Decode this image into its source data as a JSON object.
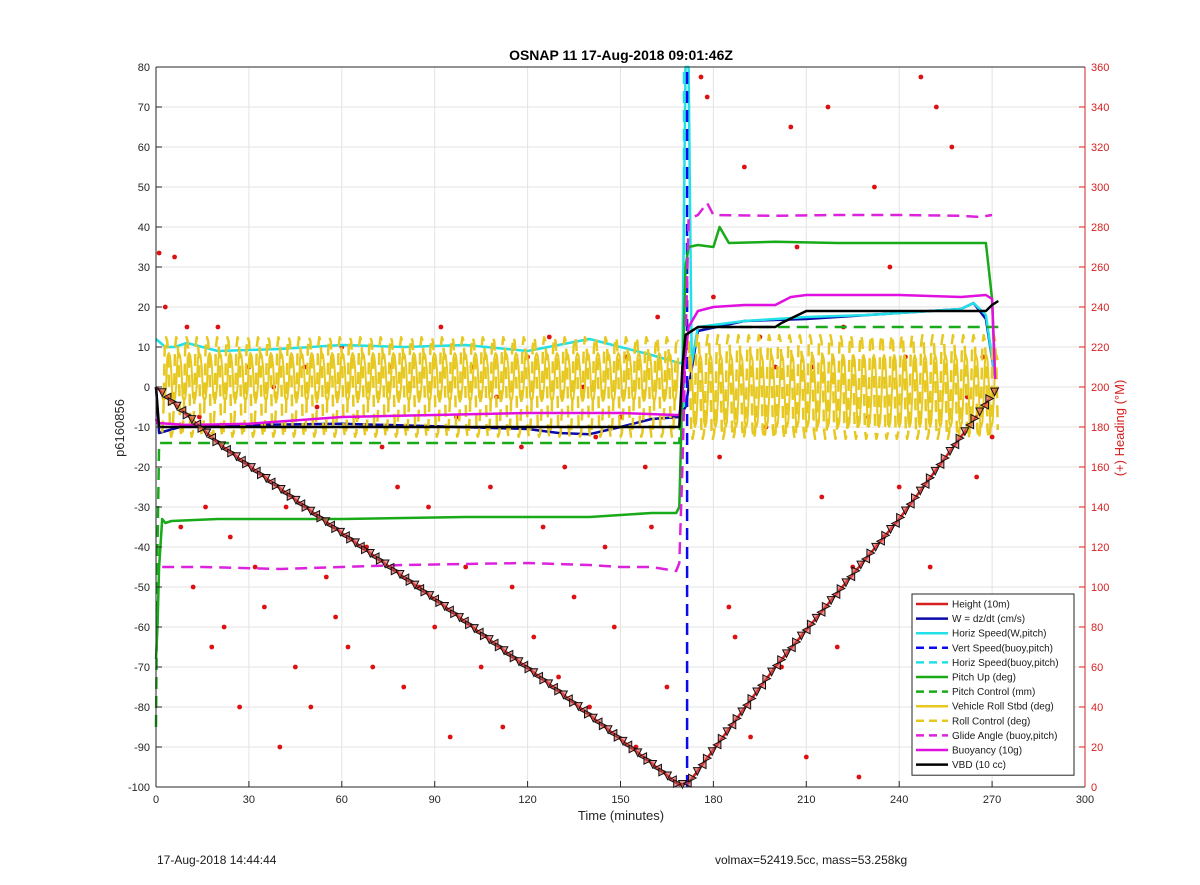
{
  "chart_data": {
    "type": "line",
    "title": "OSNAP 11 17-Aug-2018 09:01:46Z",
    "xlabel": "Time (minutes)",
    "ylabel": "p6160856",
    "y2label": "(+) Heading (°M)",
    "xlim": [
      0,
      300
    ],
    "ylim": [
      -100,
      80
    ],
    "y2lim": [
      0,
      360
    ],
    "xticks": [
      "0",
      "30",
      "60",
      "90",
      "120",
      "150",
      "180",
      "210",
      "240",
      "270",
      "300"
    ],
    "yticks": [
      "80",
      "70",
      "60",
      "50",
      "40",
      "30",
      "20",
      "10",
      "0",
      "-10",
      "-20",
      "-30",
      "-40",
      "-50",
      "-60",
      "-70",
      "-80",
      "-90",
      "-100"
    ],
    "y2ticks": [
      "360",
      "340",
      "320",
      "300",
      "280",
      "260",
      "240",
      "220",
      "200",
      "180",
      "160",
      "140",
      "120",
      "100",
      "80",
      "60",
      "40",
      "20",
      "0"
    ],
    "grid": true,
    "legend_position": "bottom-right",
    "series": [
      {
        "name": "Height (10m)",
        "style": "solid",
        "color": "#d62020",
        "x": [
          0,
          20,
          50,
          90,
          130,
          169,
          172,
          200,
          240,
          272
        ],
        "y": [
          0,
          -14,
          -31,
          -53,
          -76,
          -99.5,
          -99,
          -70,
          -33,
          0
        ]
      },
      {
        "name": "W = dz/dt (cm/s)",
        "style": "solid",
        "color": "#0a0aaa",
        "x": [
          0,
          1,
          10,
          30,
          60,
          90,
          120,
          130,
          140,
          150,
          160,
          169,
          171,
          175,
          190,
          210,
          230,
          250,
          260,
          264,
          268,
          271
        ],
        "y": [
          0,
          -11.5,
          -9.5,
          -9.5,
          -9.2,
          -9.8,
          -10.5,
          -11.5,
          -11.8,
          -10,
          -8,
          -7.5,
          -5,
          14,
          16.5,
          17,
          18,
          19,
          19.5,
          21,
          17,
          2
        ]
      },
      {
        "name": "Horiz Speed(W,pitch)",
        "style": "solid",
        "color": "#22e0e8",
        "x": [
          0,
          3,
          6,
          10,
          20,
          40,
          60,
          80,
          100,
          120,
          140,
          150,
          160,
          169,
          170,
          171,
          172,
          173,
          175,
          190,
          210,
          230,
          250,
          260,
          264,
          268,
          271
        ],
        "y": [
          12,
          10,
          10,
          11,
          9,
          9.5,
          10.5,
          10,
          10.5,
          9,
          12,
          10,
          8,
          6,
          6,
          80,
          80,
          6,
          15,
          16.5,
          17.5,
          18,
          19,
          19.5,
          21,
          18,
          2
        ]
      },
      {
        "name": "Vert Speed(buoy,pitch)",
        "style": "dash",
        "color": "#0a0aee",
        "x": [
          171.5,
          171.5
        ],
        "y": [
          -100,
          80
        ]
      },
      {
        "name": "Horiz Speed(buoy,pitch)",
        "style": "dash",
        "color": "#22e0e8",
        "x": [
          170.5,
          170.5
        ],
        "y": [
          -5,
          80
        ]
      },
      {
        "name": "Pitch Up (deg)",
        "style": "solid",
        "color": "#18aa18",
        "x": [
          0,
          0.5,
          1,
          2,
          3,
          5,
          20,
          60,
          100,
          140,
          160,
          168,
          169,
          170,
          171,
          172,
          175,
          180,
          182,
          185,
          200,
          220,
          240,
          260,
          268,
          270,
          271
        ],
        "y": [
          -68,
          -60,
          -45,
          -33,
          -34,
          -33.5,
          -33,
          -33,
          -32.5,
          -32.5,
          -31.5,
          -31.5,
          -30,
          0,
          30,
          35,
          35.5,
          35,
          40,
          36,
          36.3,
          36,
          36,
          36,
          36,
          22,
          2
        ]
      },
      {
        "name": "Pitch Control (mm)",
        "style": "dash",
        "color": "#18aa18",
        "x": [
          0,
          0.5,
          1,
          2,
          169,
          170,
          171,
          175,
          200,
          272
        ],
        "y": [
          -85,
          -40,
          -14,
          -14,
          -14,
          5,
          13,
          15,
          15,
          15
        ]
      },
      {
        "name": "Vehicle Roll Stbd (deg)",
        "style": "osc",
        "color": "#e6c820",
        "segments": [
          {
            "x": [
              2,
              169
            ],
            "period": 3.3,
            "amp": 6,
            "mid": 2.5
          },
          {
            "x": [
              172,
              272
            ],
            "period": 3.3,
            "amp": 9,
            "mid": -1
          }
        ]
      },
      {
        "name": "Roll Control (deg)",
        "style": "oscdash",
        "color": "#e6c820",
        "segments": [
          {
            "x": [
              2,
              169
            ],
            "period": 3.3,
            "amp": 12.5,
            "mid": 0
          },
          {
            "x": [
              172,
              272
            ],
            "period": 3.3,
            "amp": 13,
            "mid": 0
          }
        ]
      },
      {
        "name": "Glide Angle (buoy,pitch)",
        "style": "dash",
        "color": "#dd22dd",
        "x": [
          2,
          5,
          15,
          40,
          80,
          120,
          140,
          150,
          160,
          168,
          169,
          170,
          171,
          172,
          175,
          178,
          180,
          200,
          220,
          240,
          260,
          266,
          270
        ],
        "y": [
          -45,
          -45,
          -45,
          -45.5,
          -44.5,
          -44,
          -44.5,
          -45,
          -45,
          -46,
          -44,
          -20,
          10,
          42,
          43,
          46,
          43,
          42.8,
          43,
          43,
          42.8,
          42.5,
          43
        ]
      },
      {
        "name": "Buoyancy (10g)",
        "style": "solid",
        "color": "#e010e0",
        "x": [
          0,
          0.5,
          10,
          30,
          60,
          90,
          120,
          150,
          168,
          169,
          170,
          171,
          172,
          175,
          180,
          190,
          200,
          205,
          210,
          220,
          240,
          260,
          268,
          270,
          271
        ],
        "y": [
          -8,
          -9,
          -9.5,
          -9.2,
          -7.5,
          -7,
          -6.5,
          -6.5,
          -7,
          -7,
          -2,
          8,
          15,
          19,
          20,
          20.5,
          20.5,
          22.5,
          23,
          23,
          23,
          22.5,
          23,
          22,
          2
        ]
      },
      {
        "name": "VBD (10 cc)",
        "style": "solid",
        "color": "#000000",
        "x": [
          0,
          0.5,
          1,
          2,
          169,
          170,
          171,
          173,
          175,
          200,
          202,
          210,
          230,
          250,
          268,
          270,
          272
        ],
        "y": [
          0,
          -5,
          -10,
          -10,
          -10,
          5,
          13,
          14,
          15,
          15,
          16,
          19,
          19,
          19,
          19,
          20.5,
          21.5
        ]
      }
    ],
    "heading_points": {
      "name": "Heading (°M)",
      "axis": "right",
      "color": "#dd1111",
      "x": [
        1,
        3,
        6,
        8,
        10,
        12,
        14,
        16,
        18,
        20,
        22,
        24,
        27,
        30,
        32,
        35,
        38,
        40,
        42,
        45,
        48,
        50,
        52,
        55,
        58,
        60,
        62,
        65,
        68,
        70,
        73,
        76,
        78,
        80,
        82,
        85,
        88,
        90,
        92,
        95,
        97,
        100,
        102,
        105,
        108,
        110,
        112,
        115,
        118,
        120,
        122,
        125,
        127,
        130,
        132,
        135,
        138,
        140,
        142,
        145,
        148,
        150,
        152,
        155,
        158,
        160,
        162,
        165,
        167,
        176,
        178,
        180,
        182,
        185,
        187,
        190,
        192,
        195,
        197,
        200,
        202,
        205,
        207,
        210,
        212,
        215,
        217,
        220,
        222,
        225,
        227,
        230,
        232,
        235,
        237,
        240,
        242,
        245,
        247,
        250,
        252,
        255,
        257,
        260,
        262,
        265,
        267,
        270
      ],
      "y": [
        267,
        240,
        265,
        130,
        230,
        100,
        185,
        140,
        70,
        230,
        80,
        125,
        40,
        210,
        110,
        90,
        200,
        20,
        140,
        60,
        210,
        40,
        190,
        105,
        85,
        220,
        70,
        185,
        120,
        60,
        170,
        210,
        150,
        50,
        200,
        100,
        140,
        80,
        230,
        25,
        185,
        110,
        210,
        60,
        150,
        195,
        30,
        100,
        170,
        215,
        75,
        130,
        225,
        55,
        160,
        95,
        200,
        40,
        175,
        120,
        80,
        185,
        215,
        20,
        160,
        130,
        235,
        50,
        185,
        355,
        345,
        245,
        165,
        90,
        75,
        310,
        25,
        225,
        180,
        210,
        60,
        330,
        270,
        15,
        210,
        145,
        340,
        70,
        230,
        110,
        5,
        185,
        300,
        125,
        260,
        150,
        215,
        45,
        355,
        110,
        340,
        35,
        320,
        75,
        195,
        155,
        215,
        175
      ]
    },
    "bottom_markers": {
      "name": "Height markers (10m)",
      "x_start": 2,
      "x_end": 272
    }
  },
  "footer": {
    "left": "17-Aug-2018 14:44:44",
    "right": "volmax=52419.5cc, mass=53.258kg"
  }
}
